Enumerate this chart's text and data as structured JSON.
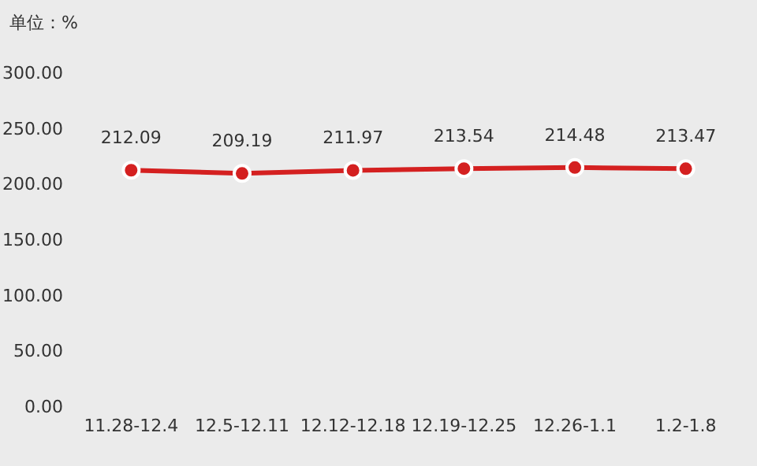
{
  "chart_data": {
    "type": "line",
    "ylabel": "单位：%",
    "categories": [
      "11.28-12.4",
      "12.5-12.11",
      "12.12-12.18",
      "12.19-12.25",
      "12.26-1.1",
      "1.2-1.8"
    ],
    "values": [
      212.09,
      209.19,
      211.97,
      213.54,
      214.48,
      213.47
    ],
    "color": "#d42020",
    "marker": "circle",
    "data_labels": true,
    "ylim": [
      0,
      300
    ],
    "yticks": [
      {
        "value": 0,
        "label": "0.00"
      },
      {
        "value": 50,
        "label": "50.00"
      },
      {
        "value": 100,
        "label": "100.00"
      },
      {
        "value": 150,
        "label": "150.00"
      },
      {
        "value": 200,
        "label": "200.00"
      },
      {
        "value": 250,
        "label": "250.00"
      },
      {
        "value": 300,
        "label": "300.00"
      }
    ]
  }
}
